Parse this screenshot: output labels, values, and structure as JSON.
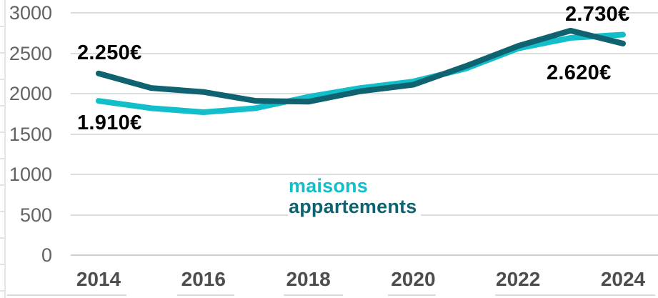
{
  "chart_data": {
    "type": "line",
    "title": "",
    "xlabel": "",
    "ylabel": "",
    "x": [
      2014,
      2015,
      2016,
      2017,
      2018,
      2019,
      2020,
      2021,
      2022,
      2023,
      2024
    ],
    "x_tick_labels": [
      "2014",
      "2016",
      "2018",
      "2020",
      "2022",
      "2024"
    ],
    "y_tick_labels": [
      "0",
      "500",
      "1000",
      "1500",
      "2000",
      "2500",
      "3000"
    ],
    "ylim": [
      0,
      3000
    ],
    "grid": "horizontal",
    "legend_position": "center-inside",
    "series": [
      {
        "name": "maisons",
        "color": "#13BECB",
        "values": [
          1910,
          1820,
          1770,
          1820,
          1960,
          2070,
          2150,
          2310,
          2560,
          2690,
          2730
        ]
      },
      {
        "name": "appartements",
        "color": "#0F6370",
        "values": [
          2250,
          2070,
          2020,
          1910,
          1900,
          2030,
          2110,
          2340,
          2590,
          2780,
          2620
        ]
      }
    ],
    "annotations": [
      {
        "id": "appartements-2014",
        "text": "2.250€"
      },
      {
        "id": "maisons-2014",
        "text": "1.910€"
      },
      {
        "id": "maisons-2024",
        "text": "2.730€"
      },
      {
        "id": "appartements-2024",
        "text": "2.620€"
      }
    ],
    "colors": {
      "gridline": "#DCDCDC",
      "axis_line": "#CFCFCF",
      "y_tick_text": "#636363",
      "x_tick_text": "#4D4D4D",
      "annotation_text": "#000000"
    }
  }
}
